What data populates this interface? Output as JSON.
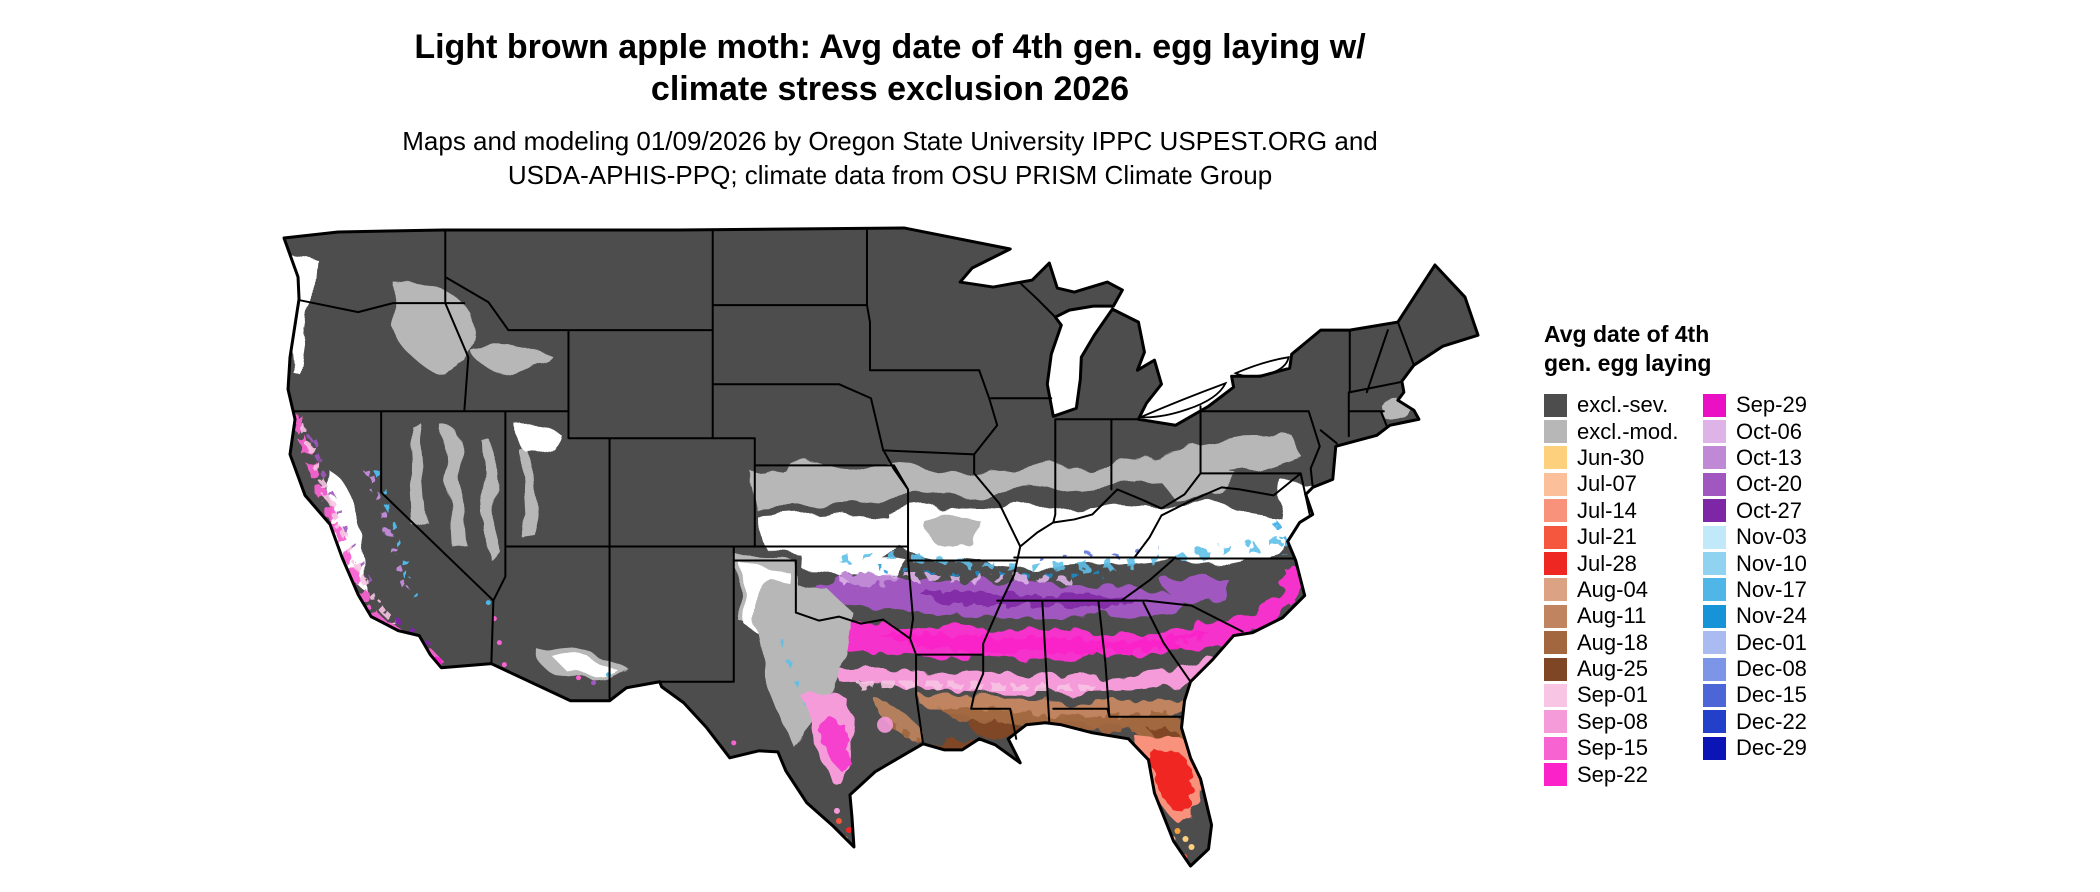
{
  "header": {
    "title_lines": [
      "Light brown apple moth: Avg date of 4th gen. egg laying w/",
      "climate stress exclusion 2026"
    ],
    "subtitle_lines": [
      "Maps and modeling 01/09/2026 by Oregon State University IPPC USPEST.ORG and",
      "USDA-APHIS-PPQ; climate data from OSU PRISM Climate Group"
    ]
  },
  "legend": {
    "title_lines": [
      "Avg date of 4th",
      "gen. egg laying"
    ],
    "columns": [
      [
        {
          "label": "excl.-sev.",
          "color": "#4d4d4d"
        },
        {
          "label": "excl.-mod.",
          "color": "#b7b7b7"
        },
        {
          "label": "Jun-30",
          "color": "#fdd07e"
        },
        {
          "label": "Jul-07",
          "color": "#fbbf9a"
        },
        {
          "label": "Jul-14",
          "color": "#f8927b"
        },
        {
          "label": "Jul-21",
          "color": "#f4573d"
        },
        {
          "label": "Jul-28",
          "color": "#ef2722"
        },
        {
          "label": "Aug-04",
          "color": "#dba284"
        },
        {
          "label": "Aug-11",
          "color": "#c08560"
        },
        {
          "label": "Aug-18",
          "color": "#a2673f"
        },
        {
          "label": "Aug-25",
          "color": "#7f4626"
        },
        {
          "label": "Sep-01",
          "color": "#f8c5e4"
        },
        {
          "label": "Sep-08",
          "color": "#f69bda"
        },
        {
          "label": "Sep-15",
          "color": "#f763d1"
        },
        {
          "label": "Sep-22",
          "color": "#fb22c9"
        }
      ],
      [
        {
          "label": "Sep-29",
          "color": "#ea10c3"
        },
        {
          "label": "Oct-06",
          "color": "#deb3e8"
        },
        {
          "label": "Oct-13",
          "color": "#bf89d6"
        },
        {
          "label": "Oct-20",
          "color": "#a058c0"
        },
        {
          "label": "Oct-27",
          "color": "#7e27a6"
        },
        {
          "label": "Nov-03",
          "color": "#c2e9fa"
        },
        {
          "label": "Nov-10",
          "color": "#8fd3f1"
        },
        {
          "label": "Nov-17",
          "color": "#4fb6e7"
        },
        {
          "label": "Nov-24",
          "color": "#1793d8"
        },
        {
          "label": "Dec-01",
          "color": "#a9bbf0"
        },
        {
          "label": "Dec-08",
          "color": "#7c95e6"
        },
        {
          "label": "Dec-15",
          "color": "#4c66d8"
        },
        {
          "label": "Dec-22",
          "color": "#2340ca"
        },
        {
          "label": "Dec-29",
          "color": "#0b14b4"
        }
      ]
    ]
  },
  "map": {
    "region": "Continental United States",
    "background_color": "#ffffff",
    "boundary_color": "#000000",
    "excluded_severe_color": "#4d4d4d",
    "excluded_moderate_color": "#b7b7b7"
  }
}
